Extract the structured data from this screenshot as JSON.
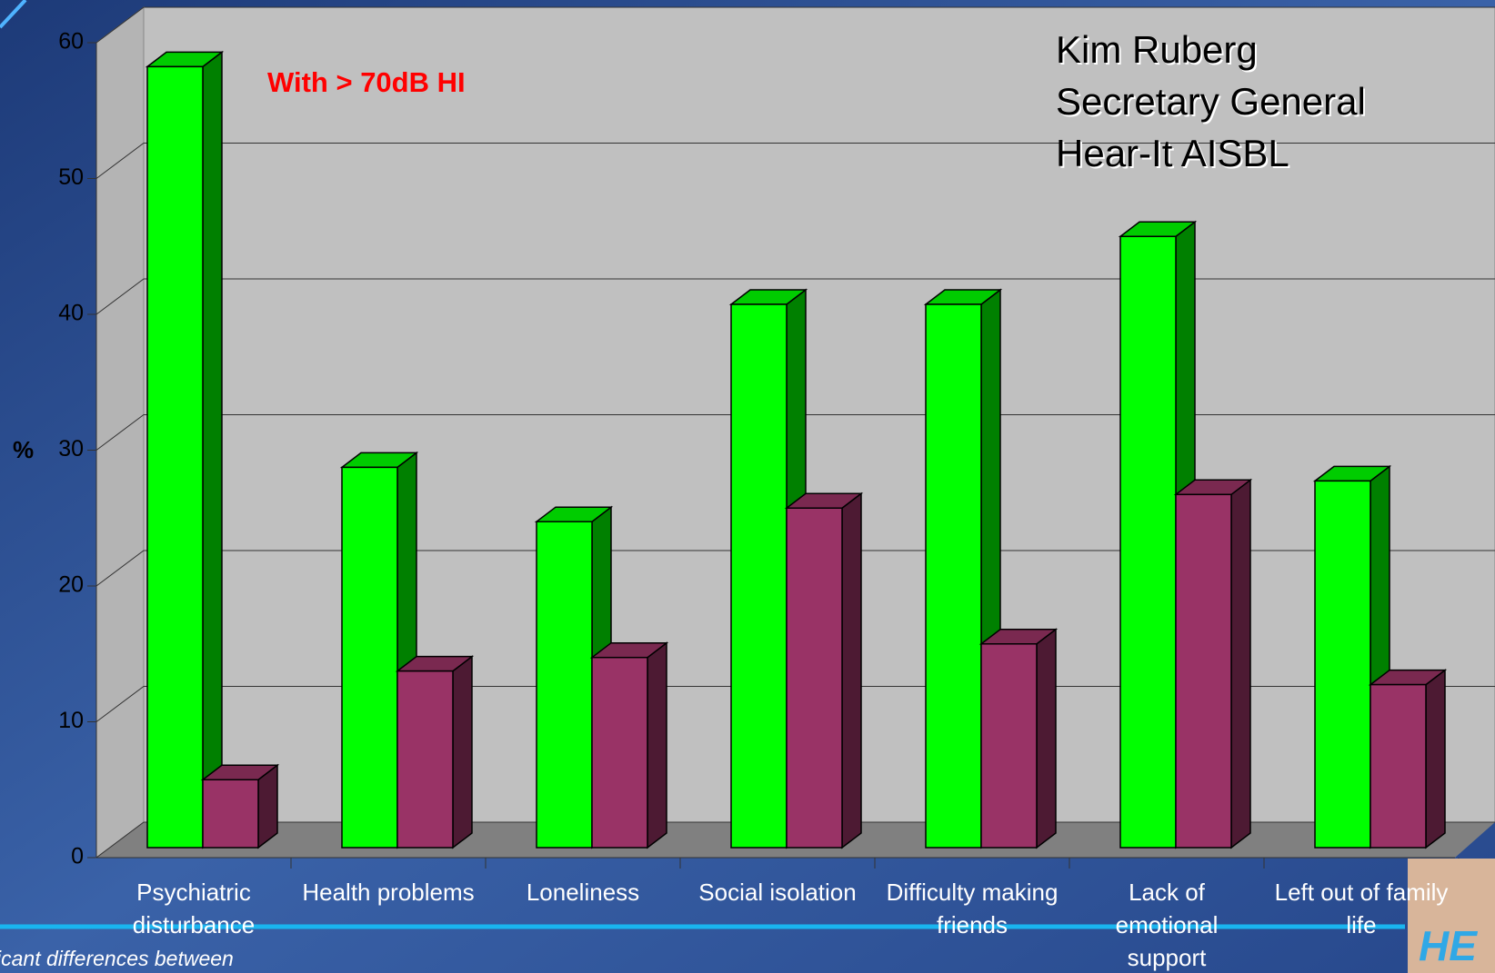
{
  "chart_data": {
    "type": "bar3d",
    "annotation": "With > 70dB HI",
    "author_lines": [
      "Kim Ruberg",
      "Secretary General",
      "Hear-It AISBL"
    ],
    "y_label": "%",
    "footnote": "icant differences between",
    "categories": [
      "Psychiatric\ndisturbance",
      "Health problems",
      "Loneliness",
      "Social isolation",
      "Difficulty making\nfriends",
      "Lack of\nemotional\nsupport",
      "Left out of family\nlife"
    ],
    "series": [
      {
        "color": "#00ff00",
        "values": [
          57.5,
          28,
          24,
          40,
          40,
          45,
          27
        ]
      },
      {
        "color": "#993366",
        "values": [
          5,
          13,
          14,
          25,
          15,
          26,
          12
        ]
      }
    ],
    "ylim": [
      0,
      60
    ],
    "yticks": [
      0,
      10,
      20,
      30,
      40,
      50,
      60
    ],
    "grid": true
  }
}
